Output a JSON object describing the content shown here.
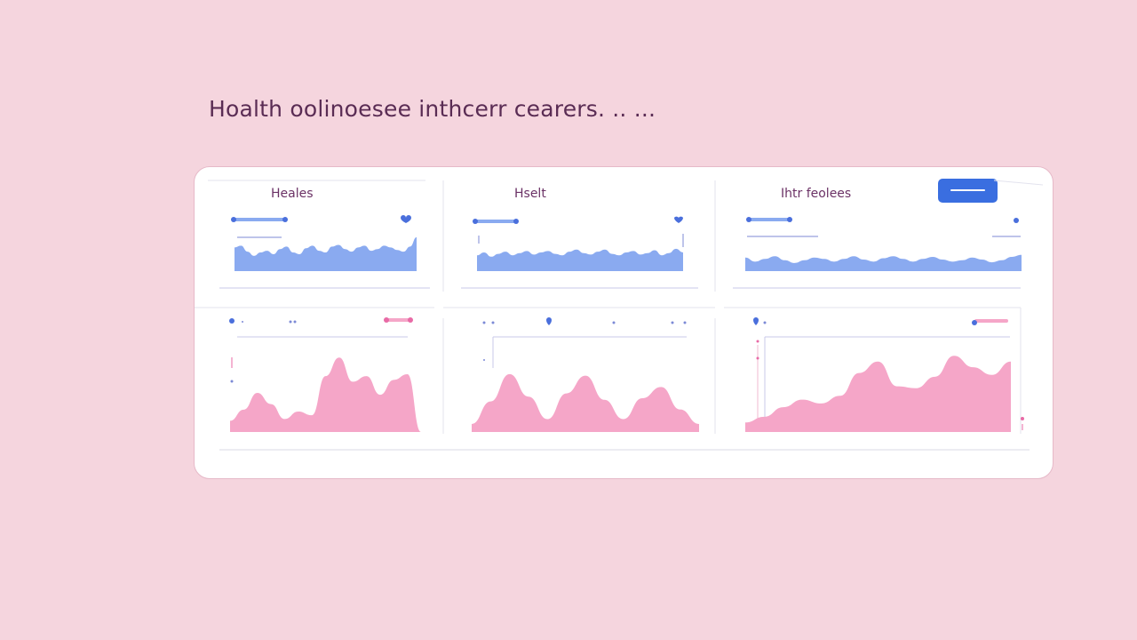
{
  "page": {
    "title": "Hoalth oolinoesee inthcerr cearers. .. ..."
  },
  "panels": {
    "top": [
      {
        "title": "Heales",
        "series": [
          28,
          30,
          23,
          18,
          22,
          24,
          20,
          26,
          29,
          22,
          20,
          27,
          30,
          24,
          22,
          29,
          31,
          26,
          23,
          28,
          30,
          24,
          26,
          30,
          28,
          25,
          23,
          29,
          40
        ]
      },
      {
        "title": "Hselt",
        "series": [
          22,
          26,
          20,
          24,
          27,
          22,
          25,
          28,
          23,
          26,
          28,
          24,
          22,
          27,
          30,
          25,
          23,
          27,
          30,
          24,
          22,
          26,
          28,
          23,
          25,
          29,
          22,
          25,
          31,
          26
        ]
      },
      {
        "title": "Ihtr feolees",
        "series": [
          20,
          14,
          18,
          22,
          16,
          12,
          16,
          20,
          18,
          14,
          18,
          22,
          17,
          14,
          19,
          22,
          18,
          14,
          18,
          21,
          17,
          14,
          16,
          20,
          17,
          13,
          16,
          21,
          24
        ]
      }
    ],
    "bottom": [
      {
        "series": [
          12,
          24,
          42,
          30,
          14,
          22,
          18,
          60,
          80,
          54,
          60,
          40,
          56,
          62,
          0
        ]
      },
      {
        "series": [
          10,
          38,
          72,
          44,
          16,
          48,
          70,
          40,
          16,
          42,
          56,
          28,
          10
        ]
      },
      {
        "series": [
          10,
          16,
          26,
          34,
          30,
          38,
          62,
          74,
          48,
          46,
          58,
          80,
          68,
          60,
          74
        ]
      }
    ]
  },
  "action_button": {
    "label": ""
  },
  "colors": {
    "background": "#f5d5de",
    "blue_fill": "#8aaaf0",
    "blue_accent": "#4a6fdc",
    "pink_fill": "#f5a6c8",
    "pink_accent": "#e86aa6",
    "button": "#3a6ee0",
    "title_text": "#5a2c54"
  }
}
